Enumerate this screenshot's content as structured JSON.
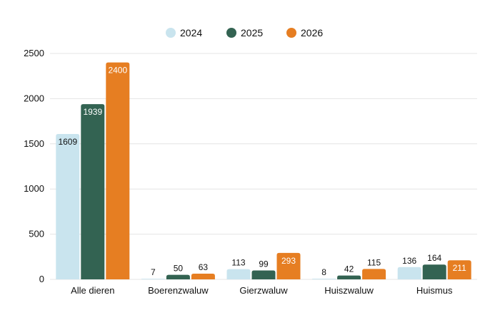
{
  "chart_data": {
    "type": "bar",
    "categories": [
      "Alle dieren",
      "Boerenzwaluw",
      "Gierzwaluw",
      "Huiszwaluw",
      "Huismus"
    ],
    "series": [
      {
        "name": "2024",
        "color": "#c9e4ee",
        "values": [
          1609,
          7,
          113,
          8,
          136
        ]
      },
      {
        "name": "2025",
        "color": "#336352",
        "values": [
          1939,
          50,
          99,
          42,
          164
        ]
      },
      {
        "name": "2026",
        "color": "#e67e22",
        "values": [
          2400,
          63,
          293,
          115,
          211
        ]
      }
    ],
    "title": "",
    "xlabel": "",
    "ylabel": "",
    "ylim": [
      0,
      2500
    ],
    "yticks": [
      0,
      500,
      1000,
      1500,
      2000,
      2500
    ],
    "grid": true,
    "legend_position": "top-center"
  }
}
